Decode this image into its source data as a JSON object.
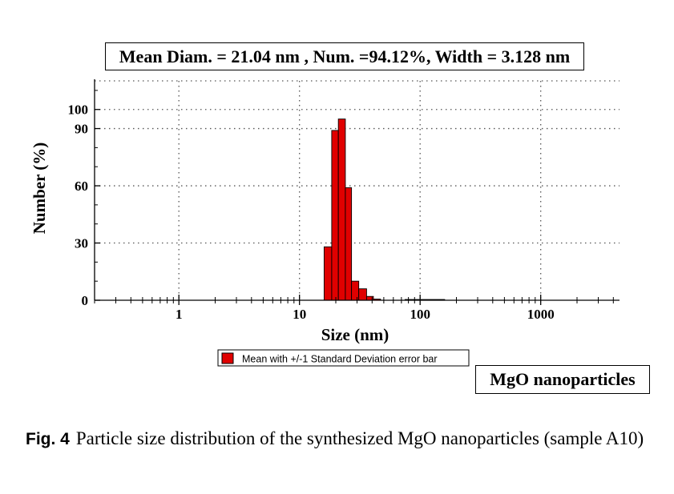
{
  "header_box": {
    "text": "Mean Diam. = 21.04 nm , Num. =94.12%, Width = 3.128 nm"
  },
  "chart_data": {
    "type": "bar",
    "xscale": "log",
    "xlabel": "Size (nm)",
    "ylabel": "Number (%)",
    "xlim": [
      0.2,
      4500
    ],
    "ylim": [
      0,
      115
    ],
    "xticks": [
      1,
      10,
      100,
      1000
    ],
    "xtick_labels": [
      "1",
      "10",
      "100",
      "1000"
    ],
    "yticks": [
      0,
      30,
      60,
      90,
      100
    ],
    "ytick_labels": [
      "0",
      "30",
      "60",
      "90",
      "100"
    ],
    "bars": [
      {
        "x0": 16.0,
        "x1": 18.5,
        "value": 28
      },
      {
        "x0": 18.5,
        "x1": 21.0,
        "value": 89
      },
      {
        "x0": 21.0,
        "x1": 24.0,
        "value": 95
      },
      {
        "x0": 24.0,
        "x1": 27.0,
        "value": 59
      },
      {
        "x0": 27.0,
        "x1": 31.0,
        "value": 10
      },
      {
        "x0": 31.0,
        "x1": 36.0,
        "value": 6
      },
      {
        "x0": 36.0,
        "x1": 41.0,
        "value": 2
      },
      {
        "x0": 41.0,
        "x1": 47.0,
        "value": 0.6
      },
      {
        "x0": 75.0,
        "x1": 160.0,
        "value": 0.4
      }
    ],
    "bar_color": "#e00000",
    "grid": "dotted",
    "legend": {
      "label": "Mean with +/-1 Standard Deviation error bar",
      "position": "bottom-center"
    }
  },
  "note_box": {
    "text": "MgO nanoparticles"
  },
  "caption": {
    "label": "Fig. 4",
    "text": "Particle size distribution of the synthesized MgO nanoparticles (sample A10)"
  }
}
